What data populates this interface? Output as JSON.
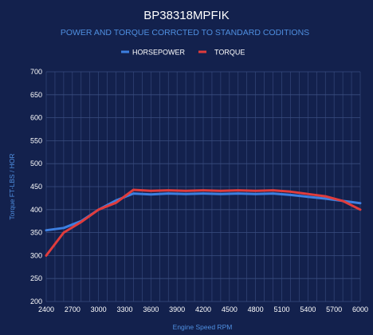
{
  "colors": {
    "background": "#13214d",
    "grid": "#3a4d80",
    "horsepower": "#3d7fe0",
    "torque": "#e03c3c",
    "subtitle": "#4f8fe0"
  },
  "chart_data": {
    "type": "line",
    "title": "BP38318MPFIK",
    "subtitle": "POWER AND TORQUE CORRCTED TO STANDARD CODITIONS",
    "xlabel": "Engine Speed RPM",
    "ylabel": "Torque FT-LBS / HOR",
    "xlim": [
      2400,
      6000
    ],
    "ylim": [
      200,
      700
    ],
    "xticks": [
      2400,
      2700,
      3000,
      3300,
      3600,
      3900,
      4200,
      4500,
      4800,
      5100,
      5400,
      5700,
      6000
    ],
    "yticks": [
      200,
      250,
      300,
      350,
      400,
      450,
      500,
      550,
      600,
      650,
      700
    ],
    "grid": true,
    "legend_position": "top-center",
    "x": [
      2400,
      2600,
      2800,
      3000,
      3200,
      3400,
      3600,
      3800,
      4000,
      4200,
      4400,
      4600,
      4800,
      5000,
      5200,
      5400,
      5600,
      5800,
      6000
    ],
    "series": [
      {
        "name": "HORSEPOWER",
        "color": "#3d7fe0",
        "values": [
          355,
          360,
          375,
          400,
          420,
          435,
          433,
          435,
          434,
          435,
          434,
          435,
          434,
          435,
          432,
          428,
          424,
          419,
          414
        ]
      },
      {
        "name": "TORQUE",
        "color": "#e03c3c",
        "values": [
          300,
          350,
          373,
          400,
          415,
          443,
          441,
          442,
          441,
          442,
          441,
          442,
          441,
          442,
          439,
          434,
          429,
          419,
          400
        ]
      }
    ]
  }
}
